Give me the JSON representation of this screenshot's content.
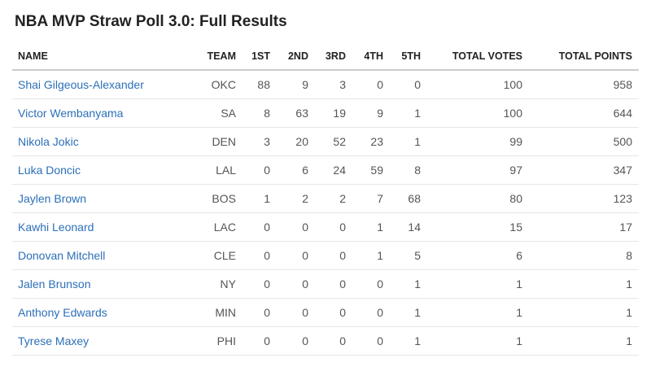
{
  "header": {
    "title": "NBA MVP Straw Poll 3.0: Full Results"
  },
  "table": {
    "columns": [
      "NAME",
      "TEAM",
      "1ST",
      "2ND",
      "3RD",
      "4TH",
      "5TH",
      "TOTAL VOTES",
      "TOTAL POINTS"
    ],
    "rows": [
      [
        "Shai Gilgeous-Alexander",
        "OKC",
        88,
        9,
        3,
        0,
        0,
        100,
        958
      ],
      [
        "Victor Wembanyama",
        "SA",
        8,
        63,
        19,
        9,
        1,
        100,
        644
      ],
      [
        "Nikola Jokic",
        "DEN",
        3,
        20,
        52,
        23,
        1,
        99,
        500
      ],
      [
        "Luka Doncic",
        "LAL",
        0,
        6,
        24,
        59,
        8,
        97,
        347
      ],
      [
        "Jaylen Brown",
        "BOS",
        1,
        2,
        2,
        7,
        68,
        80,
        123
      ],
      [
        "Kawhi Leonard",
        "LAC",
        0,
        0,
        0,
        1,
        14,
        15,
        17
      ],
      [
        "Donovan Mitchell",
        "CLE",
        0,
        0,
        0,
        1,
        5,
        6,
        8
      ],
      [
        "Jalen Brunson",
        "NY",
        0,
        0,
        0,
        0,
        1,
        1,
        1
      ],
      [
        "Anthony Edwards",
        "MIN",
        0,
        0,
        0,
        0,
        1,
        1,
        1
      ],
      [
        "Tyrese Maxey",
        "PHI",
        0,
        0,
        0,
        0,
        1,
        1,
        1
      ]
    ]
  }
}
